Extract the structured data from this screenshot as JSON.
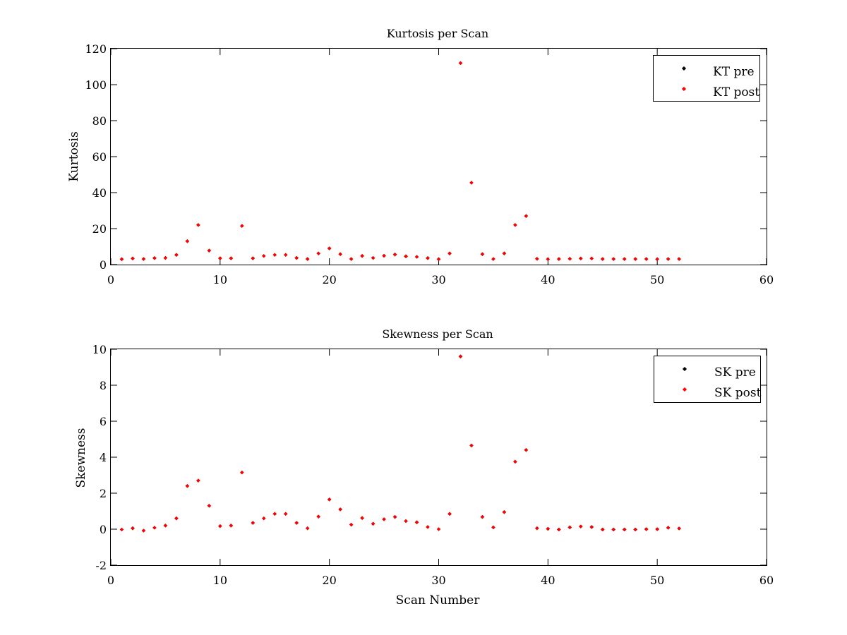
{
  "figure": {
    "background": "#ffffff"
  },
  "chart_data": [
    {
      "type": "scatter",
      "title": "Kurtosis per Scan",
      "xlabel": "",
      "ylabel": "Kurtosis",
      "xlim": [
        0,
        60
      ],
      "ylim": [
        0,
        120
      ],
      "xticks": [
        0,
        10,
        20,
        30,
        40,
        50,
        60
      ],
      "yticks": [
        0,
        20,
        40,
        60,
        80,
        100,
        120
      ],
      "grid": false,
      "legend_position": "top-right",
      "series": [
        {
          "name": "KT pre",
          "color": "#000000",
          "x": [
            1,
            2,
            3,
            4,
            5,
            6,
            7,
            8,
            9,
            10,
            11,
            12,
            13,
            14,
            15,
            16,
            17,
            18,
            19,
            20,
            21,
            22,
            23,
            24,
            25,
            26,
            27,
            28,
            29,
            30,
            31,
            32,
            33,
            34,
            35,
            36,
            37,
            38,
            39,
            40,
            41,
            42,
            43,
            44,
            45,
            46,
            47,
            48,
            49,
            50,
            51,
            52
          ],
          "y": [
            3.0,
            3.4,
            3.1,
            3.6,
            3.7,
            5.4,
            13.0,
            22.0,
            7.8,
            3.5,
            3.5,
            21.5,
            3.5,
            4.8,
            5.4,
            5.4,
            3.7,
            3.1,
            6.2,
            9.0,
            5.8,
            3.1,
            4.8,
            3.7,
            4.9,
            5.6,
            4.6,
            4.3,
            3.6,
            3.0,
            6.2,
            112,
            45.5,
            5.8,
            3.1,
            6.2,
            22.0,
            27.0,
            3.2,
            3.0,
            3.1,
            3.2,
            3.4,
            3.4,
            3.1,
            3.1,
            3.1,
            3.1,
            3.1,
            3.0,
            3.1,
            3.1
          ]
        },
        {
          "name": "KT post",
          "color": "#ff0000",
          "x": [
            1,
            2,
            3,
            4,
            5,
            6,
            7,
            8,
            9,
            10,
            11,
            12,
            13,
            14,
            15,
            16,
            17,
            18,
            19,
            20,
            21,
            22,
            23,
            24,
            25,
            26,
            27,
            28,
            29,
            30,
            31,
            32,
            33,
            34,
            35,
            36,
            37,
            38,
            39,
            40,
            41,
            42,
            43,
            44,
            45,
            46,
            47,
            48,
            49,
            50,
            51,
            52
          ],
          "y": [
            3.0,
            3.4,
            3.1,
            3.6,
            3.7,
            5.4,
            13.0,
            22.0,
            7.8,
            3.5,
            3.5,
            21.5,
            3.5,
            4.8,
            5.4,
            5.4,
            3.7,
            3.1,
            6.2,
            9.0,
            5.8,
            3.1,
            4.8,
            3.7,
            4.9,
            5.6,
            4.6,
            4.3,
            3.6,
            3.0,
            6.2,
            112,
            45.5,
            5.8,
            3.1,
            6.2,
            22.0,
            27.0,
            3.2,
            3.0,
            3.1,
            3.2,
            3.4,
            3.4,
            3.1,
            3.1,
            3.1,
            3.1,
            3.1,
            3.0,
            3.1,
            3.1
          ]
        }
      ]
    },
    {
      "type": "scatter",
      "title": "Skewness per Scan",
      "xlabel": "Scan Number",
      "ylabel": "Skewness",
      "xlim": [
        0,
        60
      ],
      "ylim": [
        -2,
        10
      ],
      "xticks": [
        0,
        10,
        20,
        30,
        40,
        50,
        60
      ],
      "yticks": [
        -2,
        0,
        2,
        4,
        6,
        8,
        10
      ],
      "grid": false,
      "legend_position": "top-right",
      "series": [
        {
          "name": "SK pre",
          "color": "#000000",
          "x": [
            1,
            2,
            3,
            4,
            5,
            6,
            7,
            8,
            9,
            10,
            11,
            12,
            13,
            14,
            15,
            16,
            17,
            18,
            19,
            20,
            21,
            22,
            23,
            24,
            25,
            26,
            27,
            28,
            29,
            30,
            31,
            32,
            33,
            34,
            35,
            36,
            37,
            38,
            39,
            40,
            41,
            42,
            43,
            44,
            45,
            46,
            47,
            48,
            49,
            50,
            51,
            52
          ],
          "y": [
            -0.02,
            0.05,
            -0.08,
            0.08,
            0.2,
            0.6,
            2.4,
            2.7,
            1.3,
            0.17,
            0.2,
            3.15,
            0.35,
            0.6,
            0.85,
            0.85,
            0.35,
            0.05,
            0.7,
            1.65,
            1.1,
            0.25,
            0.62,
            0.3,
            0.55,
            0.68,
            0.45,
            0.38,
            0.12,
            0.0,
            0.85,
            9.6,
            4.65,
            0.68,
            0.1,
            0.95,
            3.75,
            4.4,
            0.05,
            0.02,
            -0.02,
            0.1,
            0.15,
            0.12,
            -0.02,
            -0.02,
            -0.02,
            -0.02,
            0.0,
            0.0,
            0.08,
            0.04
          ]
        },
        {
          "name": "SK post",
          "color": "#ff0000",
          "x": [
            1,
            2,
            3,
            4,
            5,
            6,
            7,
            8,
            9,
            10,
            11,
            12,
            13,
            14,
            15,
            16,
            17,
            18,
            19,
            20,
            21,
            22,
            23,
            24,
            25,
            26,
            27,
            28,
            29,
            30,
            31,
            32,
            33,
            34,
            35,
            36,
            37,
            38,
            39,
            40,
            41,
            42,
            43,
            44,
            45,
            46,
            47,
            48,
            49,
            50,
            51,
            52
          ],
          "y": [
            -0.02,
            0.05,
            -0.08,
            0.08,
            0.2,
            0.6,
            2.4,
            2.7,
            1.3,
            0.17,
            0.2,
            3.15,
            0.35,
            0.6,
            0.85,
            0.85,
            0.35,
            0.05,
            0.7,
            1.65,
            1.1,
            0.25,
            0.62,
            0.3,
            0.55,
            0.68,
            0.45,
            0.38,
            0.12,
            0.0,
            0.85,
            9.6,
            4.65,
            0.68,
            0.1,
            0.95,
            3.75,
            4.4,
            0.05,
            0.02,
            -0.02,
            0.1,
            0.15,
            0.12,
            -0.02,
            -0.02,
            -0.02,
            -0.02,
            0.0,
            0.0,
            0.08,
            0.04
          ]
        }
      ]
    }
  ]
}
